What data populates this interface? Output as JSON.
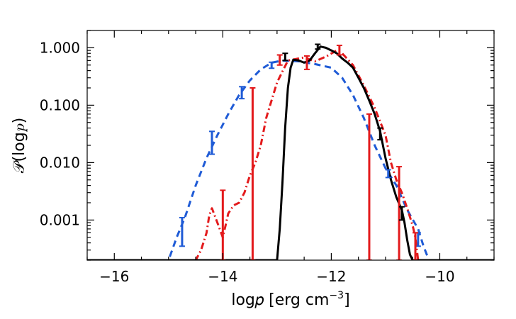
{
  "chart_data": {
    "type": "line",
    "xlabel": "log𝑝 [erg cm",
    "xlabel_exp": "−3",
    "xlabel_close": "]",
    "ylabel": "𝒫(log𝑝)",
    "xlim": [
      -16.5,
      -9.0
    ],
    "ylim": [
      0.0002,
      2.0
    ],
    "yscale": "log",
    "grid": false,
    "legend": "none",
    "x_ticks": [
      -16,
      -14,
      -12,
      -10
    ],
    "x_tick_labels": [
      "−16",
      "−14",
      "−12",
      "−10"
    ],
    "y_ticks": [
      0.001,
      0.01,
      0.1,
      1.0
    ],
    "y_tick_labels": [
      "0.001",
      "0.010",
      "0.100",
      "1.000"
    ],
    "series": [
      {
        "style": "dashed",
        "color": "#1f5bd6",
        "x": [
          -16.5,
          -15.0,
          -14.85,
          -14.7,
          -14.5,
          -14.3,
          -14.1,
          -13.9,
          -13.7,
          -13.5,
          -13.3,
          -13.1,
          -12.9,
          -12.6,
          -12.3,
          -12.0,
          -11.8,
          -11.6,
          -11.4,
          -11.2,
          -11.0,
          -10.8,
          -10.6,
          -10.4,
          -10.3,
          -10.2,
          -9.0
        ],
        "y": [
          0.0002,
          0.0002,
          0.0005,
          0.0011,
          0.004,
          0.012,
          0.03,
          0.07,
          0.15,
          0.27,
          0.42,
          0.55,
          0.6,
          0.58,
          0.52,
          0.45,
          0.3,
          0.15,
          0.06,
          0.02,
          0.008,
          0.004,
          0.0015,
          0.0007,
          0.00035,
          0.0002,
          0.0002
        ]
      },
      {
        "style": "dash-dot",
        "color": "#e31a1c",
        "x": [
          -16.5,
          -14.5,
          -14.4,
          -14.3,
          -14.25,
          -14.2,
          -14.1,
          -14.0,
          -13.95,
          -13.9,
          -13.8,
          -13.7,
          -13.6,
          -13.5,
          -13.4,
          -13.3,
          -13.2,
          -13.0,
          -12.8,
          -12.5,
          -12.3,
          -12.1,
          -11.9,
          -11.8,
          -11.6,
          -11.4,
          -11.2,
          -11.0,
          -10.9,
          -10.8,
          -10.7,
          -10.6,
          -10.5,
          -10.45,
          -10.4,
          -9.0
        ],
        "y": [
          0.0002,
          0.0002,
          0.0003,
          0.0006,
          0.0012,
          0.0016,
          0.0009,
          0.0005,
          0.0008,
          0.0013,
          0.0018,
          0.002,
          0.003,
          0.006,
          0.01,
          0.02,
          0.06,
          0.25,
          0.6,
          0.68,
          0.58,
          0.7,
          0.9,
          0.8,
          0.5,
          0.22,
          0.09,
          0.03,
          0.01,
          0.005,
          0.003,
          0.0016,
          0.0008,
          0.0005,
          0.0002,
          0.0002
        ]
      },
      {
        "style": "solid",
        "color": "#000000",
        "x": [
          -16.5,
          -13.0,
          -12.95,
          -12.9,
          -12.85,
          -12.8,
          -12.75,
          -12.7,
          -12.6,
          -12.5,
          -12.4,
          -12.3,
          -12.2,
          -12.1,
          -12.0,
          -11.9,
          -11.8,
          -11.7,
          -11.6,
          -11.5,
          -11.4,
          -11.3,
          -11.2,
          -11.1,
          -11.0,
          -10.9,
          -10.8,
          -10.7,
          -10.65,
          -10.6,
          -10.55,
          -10.5,
          -10.45,
          -10.4,
          -9.0
        ],
        "y": [
          0.0002,
          0.0002,
          0.0007,
          0.0045,
          0.04,
          0.2,
          0.45,
          0.62,
          0.6,
          0.55,
          0.6,
          0.8,
          1.05,
          1.0,
          0.9,
          0.8,
          0.65,
          0.55,
          0.45,
          0.3,
          0.2,
          0.12,
          0.07,
          0.035,
          0.012,
          0.005,
          0.0025,
          0.0015,
          0.0009,
          0.00045,
          0.00025,
          0.0002,
          0.0002,
          0.0002,
          0.0002
        ]
      }
    ],
    "error_bars": [
      {
        "color": "#1f5bd6",
        "x": -14.75,
        "low": 0.00035,
        "high": 0.0011
      },
      {
        "color": "#1f5bd6",
        "x": -14.2,
        "low": 0.014,
        "high": 0.035
      },
      {
        "color": "#1f5bd6",
        "x": -13.65,
        "low": 0.13,
        "high": 0.21
      },
      {
        "color": "#1f5bd6",
        "x": -13.1,
        "low": 0.44,
        "high": 0.56
      },
      {
        "color": "#1f5bd6",
        "x": -10.95,
        "low": 0.0055,
        "high": 0.0075
      },
      {
        "color": "#1f5bd6",
        "x": -10.4,
        "low": 0.00035,
        "high": 0.0006
      },
      {
        "color": "#e31a1c",
        "x": -14.0,
        "low": 0.0002,
        "high": 0.0033
      },
      {
        "color": "#e31a1c",
        "x": -13.45,
        "low": 0.0002,
        "high": 0.2
      },
      {
        "color": "#e31a1c",
        "x": -12.95,
        "low": 0.5,
        "high": 0.75
      },
      {
        "color": "#e31a1c",
        "x": -12.45,
        "low": 0.42,
        "high": 0.72
      },
      {
        "color": "#e31a1c",
        "x": -11.85,
        "low": 0.75,
        "high": 1.1
      },
      {
        "color": "#e31a1c",
        "x": -11.3,
        "low": 0.0002,
        "high": 0.07
      },
      {
        "color": "#e31a1c",
        "x": -10.75,
        "low": 0.0002,
        "high": 0.0085
      },
      {
        "color": "#e31a1c",
        "x": -10.45,
        "low": 0.0002,
        "high": 0.0006
      },
      {
        "color": "#000000",
        "x": -12.85,
        "low": 0.6,
        "high": 0.8
      },
      {
        "color": "#000000",
        "x": -12.25,
        "low": 0.95,
        "high": 1.15
      },
      {
        "color": "#000000",
        "x": -11.1,
        "low": 0.025,
        "high": 0.04
      },
      {
        "color": "#000000",
        "x": -10.7,
        "low": 0.001,
        "high": 0.0017
      }
    ]
  }
}
